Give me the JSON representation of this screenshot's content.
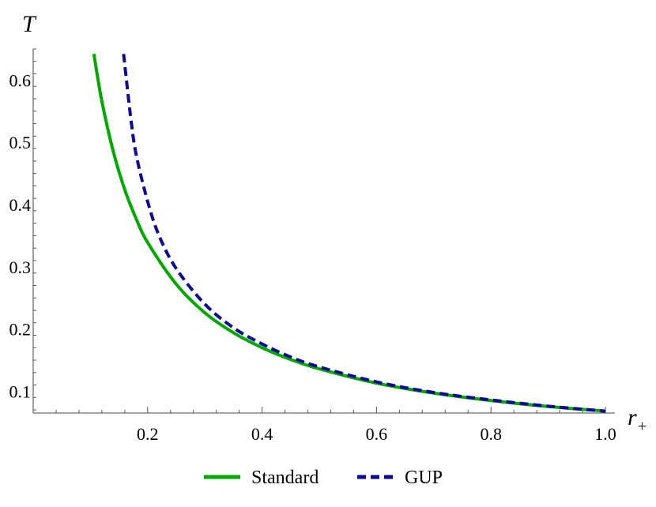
{
  "chart_data": {
    "type": "line",
    "title": "",
    "xlabel": "r",
    "xlabel_subscript": "+",
    "ylabel": "T",
    "xlim": [
      0,
      1.0
    ],
    "ylim": [
      0.065,
      0.65
    ],
    "x_ticks": [
      0.2,
      0.4,
      0.6,
      0.8,
      1.0
    ],
    "x_tick_labels": [
      "0.2",
      "0.4",
      "0.6",
      "0.8",
      "1.0"
    ],
    "y_ticks": [
      0.1,
      0.2,
      0.3,
      0.4,
      0.5,
      0.6
    ],
    "y_tick_labels": [
      "0.1",
      "0.2",
      "0.3",
      "0.4",
      "0.5",
      "0.6"
    ],
    "legend_position": "bottom",
    "series": [
      {
        "name": "Standard",
        "color": "#00aa00",
        "style": "solid",
        "x": [
          0.106,
          0.12,
          0.14,
          0.16,
          0.18,
          0.2,
          0.25,
          0.3,
          0.35,
          0.4,
          0.45,
          0.5,
          0.6,
          0.7,
          0.8,
          0.9,
          1.0
        ],
        "y": [
          0.642,
          0.566,
          0.485,
          0.424,
          0.377,
          0.339,
          0.272,
          0.226,
          0.194,
          0.17,
          0.151,
          0.136,
          0.113,
          0.097,
          0.085,
          0.0755,
          0.068
        ]
      },
      {
        "name": "GUP",
        "color": "#0a0a96",
        "style": "dashed",
        "x": [
          0.158,
          0.17,
          0.18,
          0.2,
          0.22,
          0.25,
          0.3,
          0.35,
          0.4,
          0.45,
          0.5,
          0.6,
          0.7,
          0.8,
          0.9,
          1.0
        ],
        "y": [
          0.642,
          0.543,
          0.48,
          0.405,
          0.35,
          0.297,
          0.24,
          0.202,
          0.176,
          0.155,
          0.139,
          0.115,
          0.098,
          0.086,
          0.076,
          0.068
        ]
      }
    ]
  }
}
